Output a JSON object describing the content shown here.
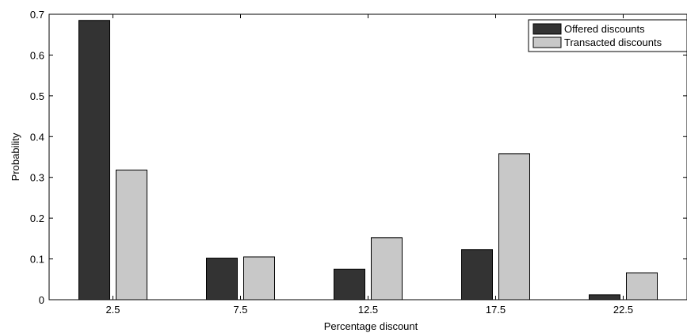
{
  "chart_data": {
    "type": "bar",
    "title": "",
    "xlabel": "Percentage discount",
    "ylabel": "Probability",
    "categories": [
      "2.5",
      "7.5",
      "12.5",
      "17.5",
      "22.5"
    ],
    "ylim": [
      0,
      0.7
    ],
    "yticks": [
      "0",
      "0.1",
      "0.2",
      "0.3",
      "0.4",
      "0.5",
      "0.6",
      "0.7"
    ],
    "grid": false,
    "legend_position": "top-right",
    "series": [
      {
        "name": "Offered discounts",
        "color": "#333333",
        "values": [
          0.685,
          0.102,
          0.075,
          0.123,
          0.012
        ]
      },
      {
        "name": "Transacted discounts",
        "color": "#c8c8c8",
        "values": [
          0.318,
          0.105,
          0.152,
          0.358,
          0.066
        ]
      }
    ]
  }
}
